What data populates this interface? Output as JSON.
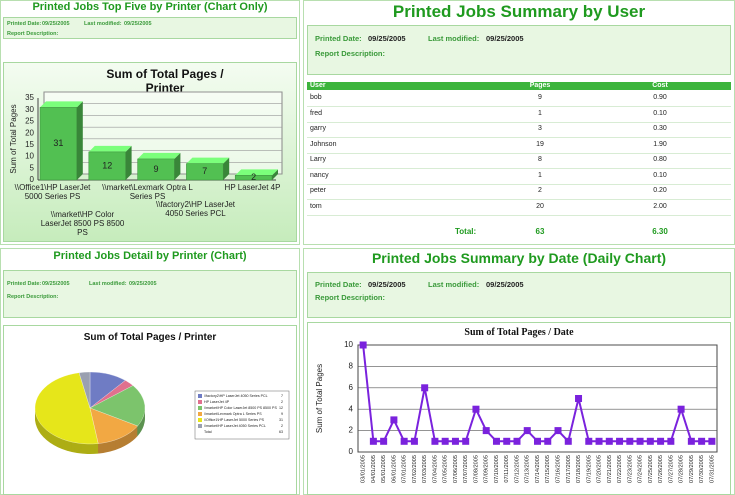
{
  "panels": [
    {
      "title": "Printed Jobs Top Five by Printer (Chart Only)",
      "printed_date_label": "Printed Date:",
      "printed_date": "09/25/2005",
      "modified_label": "Last modified:",
      "modified": "09/25/2005",
      "description_label": "Report Description:"
    },
    {
      "title": "Printed Jobs Summary by User",
      "printed_date_label": "Printed Date:",
      "printed_date": "09/25/2005",
      "modified_label": "Last modified:",
      "modified": "09/25/2005",
      "description_label": "Report Description:"
    },
    {
      "title": "Printed Jobs Detail by Printer (Chart)",
      "printed_date_label": "Printed Date:",
      "printed_date": "09/25/2005",
      "modified_label": "Last modified:",
      "modified": "09/25/2005",
      "description_label": "Report Description:"
    },
    {
      "title": "Printed Jobs Summary by Date (Daily Chart)",
      "printed_date_label": "Printed Date:",
      "printed_date": "09/25/2005",
      "modified_label": "Last modified:",
      "modified": "09/25/2005",
      "description_label": "Report Description:"
    }
  ],
  "table": {
    "headers": [
      "User",
      "Pages",
      "Cost"
    ],
    "rows": [
      [
        "bob",
        9,
        "0.90"
      ],
      [
        "fred",
        1,
        "0.10"
      ],
      [
        "garry",
        3,
        "0.30"
      ],
      [
        "Johnson",
        19,
        "1.90"
      ],
      [
        "Larry",
        8,
        "0.80"
      ],
      [
        "nancy",
        1,
        "0.10"
      ],
      [
        "peter",
        2,
        "0.20"
      ],
      [
        "tom",
        20,
        "2.00"
      ]
    ],
    "total_label": "Total:",
    "total_pages": 63,
    "total_cost": "6.30"
  },
  "chart_data": [
    {
      "type": "bar",
      "title": "Sum of Total Pages / Printer",
      "y_label": "Sum of Total Pages",
      "categories": [
        "\\\\Office1\\HP LaserJet 5000 Series PS",
        "\\\\market\\HP Color LaserJet 8500 PS 8500 PS",
        "\\\\market\\Lexmark Optra L Series PS",
        "\\\\factory2\\HP LaserJet 4050 Series PCL",
        "HP LaserJet 4P"
      ],
      "values": [
        31,
        12,
        9,
        7,
        2
      ],
      "color": "#52c052",
      "ylim": [
        0,
        35
      ],
      "yticks": [
        0,
        5,
        10,
        15,
        20,
        25,
        30,
        35
      ],
      "grid": true
    },
    {
      "type": "pie",
      "title": "Sum of Total Pages / Printer",
      "categories": [
        "\\\\factory2\\HP LaserJet 4050 Series PCL",
        "HP LaserJet 4P",
        "\\\\market\\HP Color LaserJet 8500 PS 8500 PS",
        "\\\\market\\Lexmark Optra L Series PS",
        "\\\\Office1\\HP LaserJet 5000 Series PS",
        "\\\\market\\HP LaserJet 4050 Series PCL"
      ],
      "values": [
        7,
        2,
        12,
        9,
        31,
        2
      ],
      "colors": [
        "#6f7cc4",
        "#e0708e",
        "#7cc46c",
        "#f2a843",
        "#e6e61a",
        "#9aa0b0"
      ],
      "total_label": "Total",
      "total": 63
    },
    {
      "type": "line",
      "title": "Sum of Total Pages / Date",
      "y_label": "Sum of Total Pages",
      "categories": [
        "03/01/2005",
        "04/01/2005",
        "05/01/2005",
        "06/01/2005",
        "07/01/2005",
        "07/02/2005",
        "07/03/2005",
        "07/04/2005",
        "07/05/2005",
        "07/06/2005",
        "07/07/2005",
        "07/08/2005",
        "07/09/2005",
        "07/10/2005",
        "07/11/2005",
        "07/12/2005",
        "07/13/2005",
        "07/14/2005",
        "07/15/2005",
        "07/16/2005",
        "07/17/2005",
        "07/18/2005",
        "07/19/2005",
        "07/20/2005",
        "07/21/2005",
        "07/22/2005",
        "07/23/2005",
        "07/24/2005",
        "07/25/2005",
        "07/26/2005",
        "07/27/2005",
        "07/28/2005",
        "07/29/2005",
        "07/30/2005",
        "07/31/2005"
      ],
      "values": [
        10,
        1,
        1,
        3,
        1,
        1,
        6,
        1,
        1,
        1,
        1,
        4,
        2,
        1,
        1,
        1,
        2,
        1,
        1,
        2,
        1,
        5,
        1,
        1,
        1,
        1,
        1,
        1,
        1,
        1,
        1,
        4,
        1,
        1,
        1
      ],
      "color": "#7a22dd",
      "ylim": [
        0,
        10
      ],
      "yticks": [
        0,
        2,
        4,
        6,
        8,
        10
      ],
      "grid": true
    }
  ]
}
